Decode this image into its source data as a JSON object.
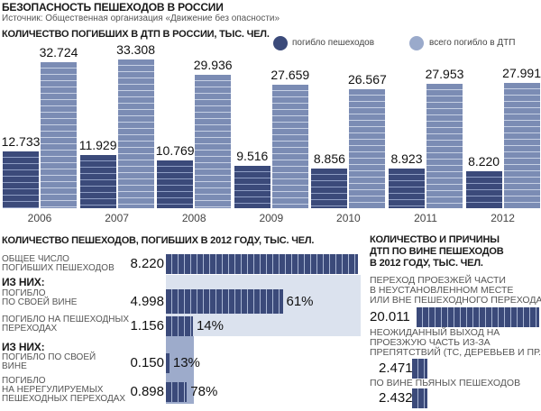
{
  "header": {
    "title": "БЕЗОПАСНОСТЬ ПЕШЕХОДОВ  В РОССИИ",
    "source": "Источник: Общественная организация «Движение без опасности»"
  },
  "colors": {
    "pedestrians": "#3b4a7a",
    "total": "#7b8cb4",
    "panel_light": "#dbe2ee",
    "panel_mid": "#9dabcb"
  },
  "chart_data": [
    {
      "type": "bar",
      "title": "КОЛИЧЕСТВО ПОГИБШИХ В ДТП В РОССИИ, ТЫС. ЧЕЛ.",
      "categories": [
        "2006",
        "2007",
        "2008",
        "2009",
        "2010",
        "2011",
        "2012"
      ],
      "series": [
        {
          "name": "погибло пешеходов",
          "values": [
            12.733,
            11.929,
            10.769,
            9.516,
            8.856,
            8.923,
            8.22
          ],
          "labels": [
            "12.733",
            "11.929",
            "10.769",
            "9.516",
            "8.856",
            "8.923",
            "8.220"
          ]
        },
        {
          "name": "всего погибло в ДТП",
          "values": [
            32.724,
            33.308,
            29.936,
            27.659,
            26.567,
            27.953,
            27.991
          ],
          "labels": [
            "32.724",
            "33.308",
            "29.936",
            "27.659",
            "26.567",
            "27.953",
            "27.991"
          ]
        }
      ],
      "legend": "top-right"
    },
    {
      "type": "bar",
      "orientation": "horizontal",
      "title": "КОЛИЧЕСТВО ПЕШЕХОДОВ, ПОГИБШИХ В 2012 ГОДУ, ТЫС. ЧЕЛ.",
      "rows": [
        {
          "label": "ОБЩЕЕ ЧИСЛО\nПОГИБШИХ ПЕШЕХОДОВ",
          "value": 8.22,
          "value_label": "8.220",
          "pct": ""
        },
        {
          "label": "ПОГИБЛО\nПО СВОЕЙ ВИНЕ",
          "value": 4.998,
          "value_label": "4.998",
          "pct": "61%"
        },
        {
          "label": "ПОГИБЛО НА ПЕШЕХОДНЫХ\nПЕРЕХОДАХ",
          "value": 1.156,
          "value_label": "1.156",
          "pct": "14%"
        },
        {
          "label": "ПОГИБЛО ПО СВОЕЙ\nВИНЕ",
          "value": 0.15,
          "value_label": "0.150",
          "pct": "13%"
        },
        {
          "label": "ПОГИБЛО\nНА НЕРЕГУЛИРУЕМЫХ\nПЕШЕХОДНЫХ ПЕРЕХОДАХ",
          "value": 0.898,
          "value_label": "0.898",
          "pct": "78%"
        }
      ],
      "subheads": [
        "ИЗ НИХ:",
        "ИЗ НИХ:"
      ]
    },
    {
      "type": "bar",
      "orientation": "horizontal",
      "title": "КОЛИЧЕСТВО И ПРИЧИНЫ\nДТП ПО ВИНЕ ПЕШЕХОДОВ\nВ 2012 ГОДУ, ТЫС. ЧЕЛ.",
      "rows": [
        {
          "label": "ПЕРЕХОД ПРОЕЗЖЕЙ ЧАСТИ\nВ НЕУСТАНОВЛЕННОМ МЕСТЕ\nИЛИ ВНЕ ПЕШЕХОДНОГО ПЕРЕХОДА",
          "value": 20.011,
          "value_label": "20.011"
        },
        {
          "label": "НЕОЖИДАННЫЙ ВЫХОД НА\nПРОЕЗЖУЮ ЧАСТЬ ИЗ-ЗА\nПРЕПЯТСТВИЙ (ТС, ДЕРЕВЬЕВ И ПР.)",
          "value": 2.471,
          "value_label": "2.471"
        },
        {
          "label": "ПО ВИНЕ ПЬЯНЫХ ПЕШЕХОДОВ",
          "value": 2.432,
          "value_label": "2.432"
        }
      ]
    }
  ]
}
